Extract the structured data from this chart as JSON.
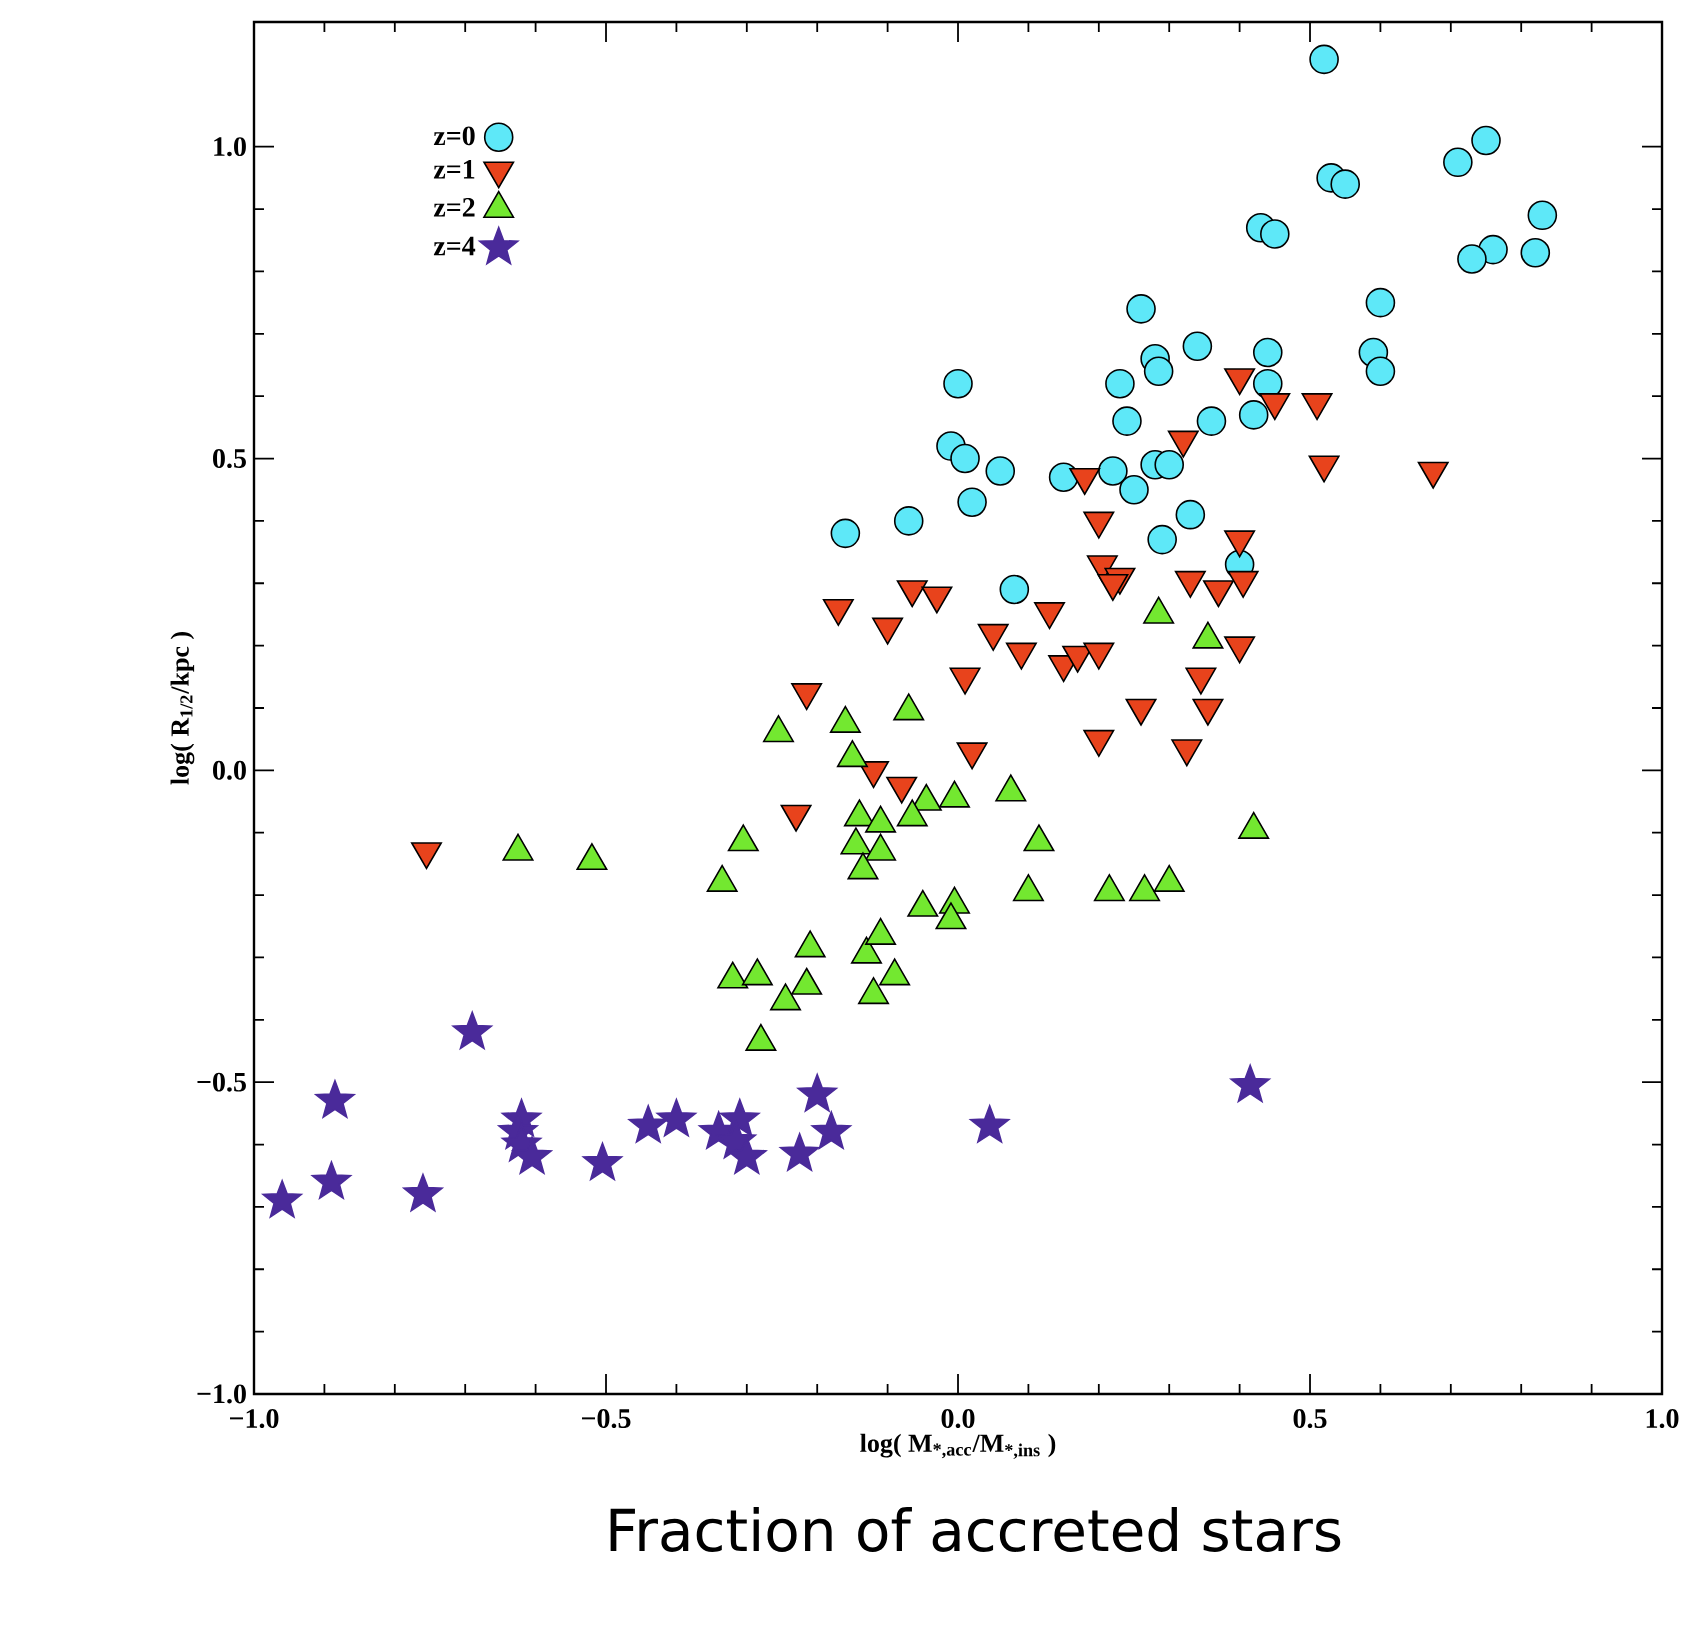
{
  "chart_data": {
    "type": "scatter",
    "xlabel": "log( M$_{*,acc}$/M$_{*,ins}$ )",
    "ylabel": "log( R$_{1/2}$/kpc )",
    "annotations": [
      "Fraction  of accreted stars"
    ],
    "xlim": [
      -1.0,
      1.0
    ],
    "ylim": [
      -1.0,
      1.2
    ],
    "xticks": [
      {
        "value": -1.0,
        "label": "−1.0"
      },
      {
        "value": -0.5,
        "label": "−0.5"
      },
      {
        "value": 0,
        "label": "0.0"
      },
      {
        "value": 0.5,
        "label": "0.5"
      },
      {
        "value": 1.0,
        "label": "1.0"
      }
    ],
    "yticks": [
      {
        "value": -1.0,
        "label": "−1.0"
      },
      {
        "value": -0.5,
        "label": "−0.5"
      },
      {
        "value": 0,
        "label": "0.0"
      },
      {
        "value": 0.5,
        "label": "0.5"
      },
      {
        "value": 1.0,
        "label": "1.0"
      }
    ],
    "legend": "top left",
    "grid": false,
    "series": [
      {
        "name": "z=0",
        "color": "#5ee8f8",
        "marker": "circle",
        "x": [
          0.52,
          0.75,
          0.71,
          0.53,
          0.55,
          0.83,
          0.76,
          0.73,
          0.82,
          0.43,
          0.45,
          0.6,
          0.59,
          0.6,
          0.26,
          0.34,
          0.28,
          0.285,
          0.23,
          0.0,
          0.44,
          0.44,
          0.42,
          0.36,
          0.24,
          -0.01,
          0.01,
          0.06,
          0.15,
          0.22,
          0.25,
          0.28,
          0.3,
          0.02,
          -0.07,
          -0.16,
          0.33,
          0.29,
          0.08,
          0.4
        ],
        "values": [
          1.14,
          1.01,
          0.975,
          0.95,
          0.94,
          0.89,
          0.835,
          0.82,
          0.83,
          0.87,
          0.86,
          0.75,
          0.67,
          0.64,
          0.74,
          0.68,
          0.66,
          0.64,
          0.62,
          0.62,
          0.67,
          0.62,
          0.57,
          0.56,
          0.56,
          0.52,
          0.5,
          0.48,
          0.47,
          0.48,
          0.45,
          0.49,
          0.49,
          0.43,
          0.4,
          0.38,
          0.41,
          0.37,
          0.29,
          0.33
        ]
      },
      {
        "name": "z=1",
        "color": "#e8431c",
        "marker": "triangle_down",
        "x": [
          0.4,
          0.45,
          0.51,
          0.52,
          0.675,
          0.32,
          0.18,
          0.2,
          0.4,
          -0.17,
          -0.1,
          -0.065,
          -0.03,
          0.13,
          0.205,
          0.23,
          0.22,
          0.33,
          0.37,
          0.405,
          0.09,
          0.15,
          0.17,
          0.2,
          0.4,
          0.05,
          0.01,
          0.345,
          0.355,
          0.26,
          -0.215,
          0.02,
          0.2,
          0.325,
          -0.12,
          -0.08,
          -0.23,
          -0.755
        ],
        "values": [
          0.63,
          0.59,
          0.59,
          0.49,
          0.48,
          0.53,
          0.47,
          0.4,
          0.37,
          0.26,
          0.23,
          0.29,
          0.28,
          0.255,
          0.33,
          0.31,
          0.3,
          0.305,
          0.29,
          0.305,
          0.19,
          0.17,
          0.185,
          0.19,
          0.2,
          0.22,
          0.15,
          0.15,
          0.1,
          0.1,
          0.125,
          0.03,
          0.05,
          0.035,
          0.0,
          -0.025,
          -0.07,
          -0.13
        ]
      },
      {
        "name": "z=2",
        "color": "#73e830",
        "marker": "triangle",
        "x": [
          0.285,
          0.355,
          -0.07,
          -0.255,
          -0.16,
          -0.15,
          0.075,
          -0.005,
          -0.045,
          -0.065,
          -0.14,
          -0.145,
          -0.11,
          -0.11,
          -0.135,
          0.115,
          0.42,
          0.1,
          0.215,
          0.265,
          0.3,
          -0.05,
          -0.005,
          -0.01,
          -0.625,
          -0.52,
          -0.305,
          -0.335,
          -0.21,
          -0.13,
          -0.11,
          -0.32,
          -0.285,
          -0.215,
          -0.245,
          -0.09,
          -0.12,
          -0.28
        ],
        "values": [
          0.25,
          0.21,
          0.095,
          0.06,
          0.075,
          0.02,
          -0.035,
          -0.045,
          -0.05,
          -0.075,
          -0.075,
          -0.12,
          -0.085,
          -0.13,
          -0.16,
          -0.115,
          -0.095,
          -0.195,
          -0.195,
          -0.195,
          -0.18,
          -0.22,
          -0.215,
          -0.24,
          -0.13,
          -0.145,
          -0.115,
          -0.18,
          -0.285,
          -0.295,
          -0.265,
          -0.335,
          -0.33,
          -0.345,
          -0.37,
          -0.33,
          -0.36,
          -0.435
        ]
      },
      {
        "name": "z=4",
        "color": "#4a2a9a",
        "marker": "star",
        "x": [
          -0.96,
          -0.89,
          -0.885,
          -0.76,
          -0.69,
          -0.62,
          -0.625,
          -0.62,
          -0.605,
          -0.505,
          -0.44,
          -0.4,
          -0.34,
          -0.31,
          -0.315,
          -0.3,
          -0.225,
          -0.2,
          -0.18,
          0.045,
          0.415
        ],
        "values": [
          -0.69,
          -0.66,
          -0.53,
          -0.68,
          -0.42,
          -0.56,
          -0.58,
          -0.6,
          -0.62,
          -0.63,
          -0.57,
          -0.56,
          -0.58,
          -0.56,
          -0.595,
          -0.62,
          -0.615,
          -0.52,
          -0.58,
          -0.57,
          -0.505
        ]
      }
    ]
  }
}
